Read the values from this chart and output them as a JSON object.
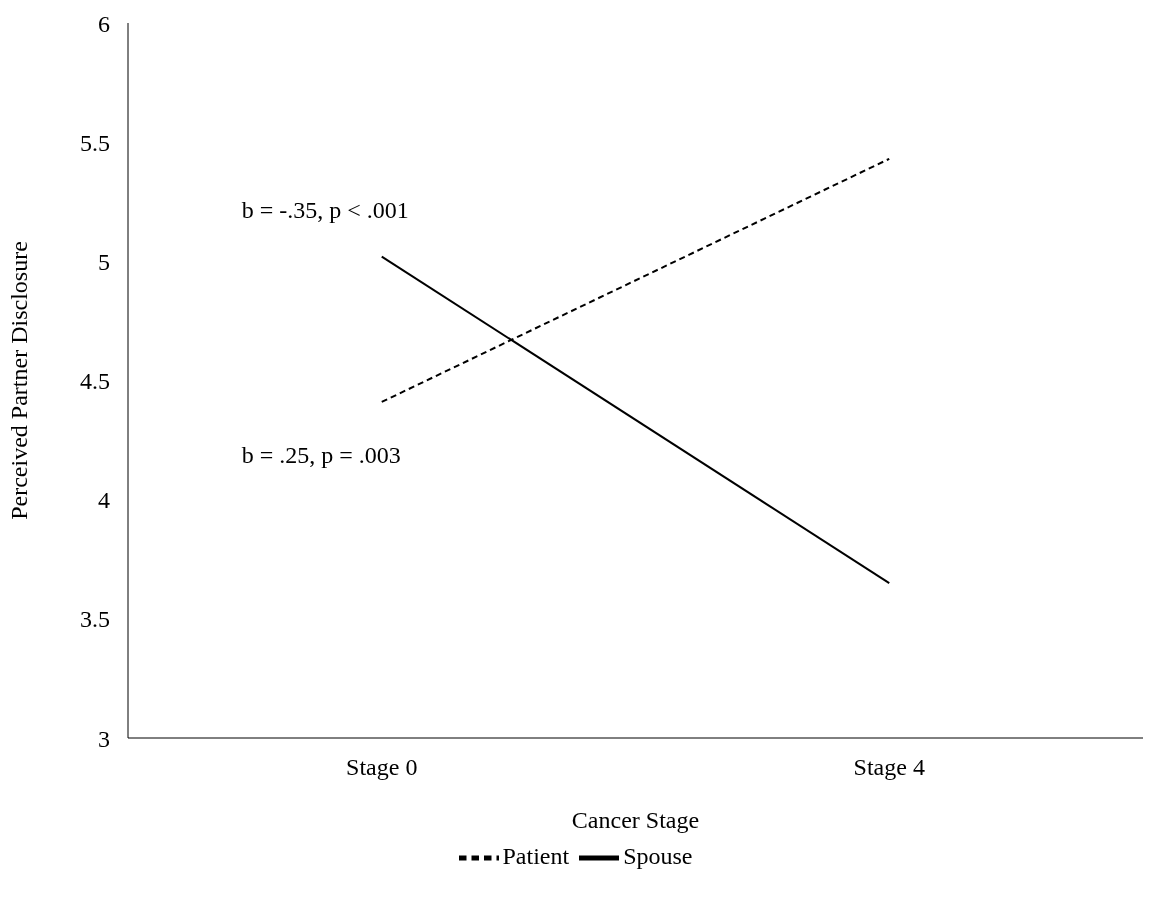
{
  "chart_data": {
    "type": "line",
    "xlabel": "Cancer Stage",
    "ylabel": "Perceived Partner Disclosure",
    "categories": [
      "Stage 0",
      "Stage 4"
    ],
    "series": [
      {
        "name": "Spouse",
        "color": "#000000",
        "values": [
          5.02,
          3.65
        ],
        "line_style": "solid"
      },
      {
        "name": "Patient",
        "color": "#000000",
        "values": [
          4.41,
          5.43
        ],
        "line_style": "dashed"
      }
    ],
    "ylim": [
      3,
      6
    ],
    "yticks": [
      3,
      3.5,
      4,
      4.5,
      5,
      5.5,
      6
    ],
    "grid": false,
    "legend": "bottom",
    "marker": "none",
    "annotations": [
      "b = -.35, p < .001",
      "b = .25, p = .003"
    ]
  }
}
